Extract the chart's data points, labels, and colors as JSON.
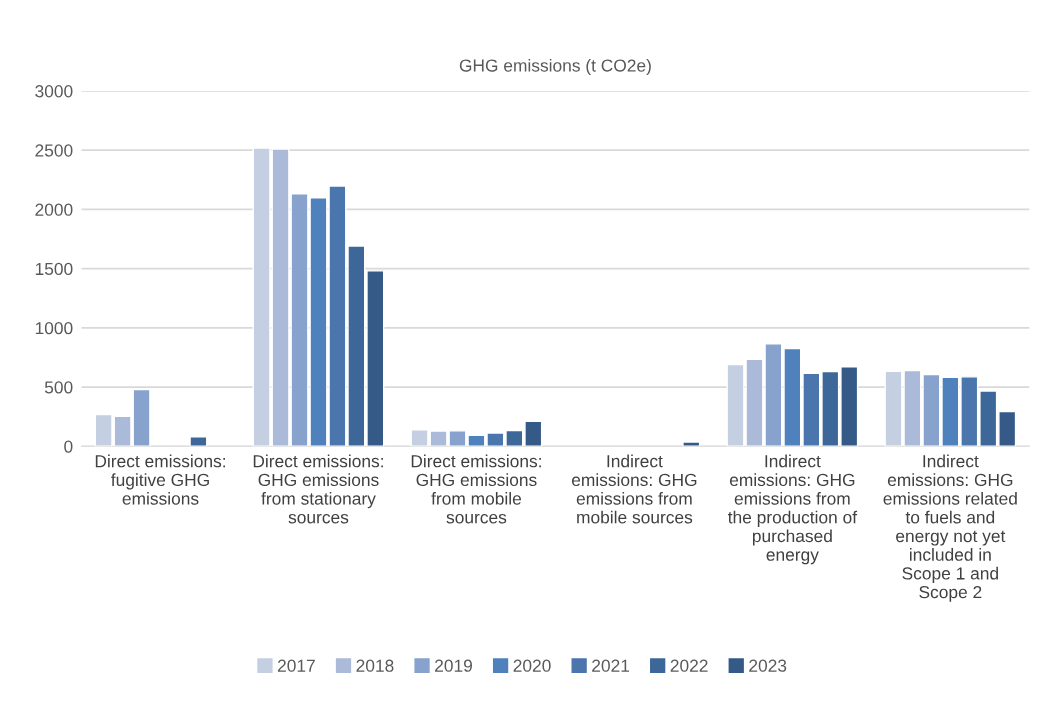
{
  "chart_data": {
    "type": "bar",
    "title": "GHG emissions (t CO2e)",
    "categories": [
      "Direct emissions:\nfugitive GHG\nemissions",
      "Direct emissions:\nGHG emissions\nfrom stationary\nsources",
      "Direct emissions:\nGHG emissions\nfrom mobile\nsources",
      "Indirect\nemissions: GHG\nemissions from\nmobile sources",
      "Indirect\nemissions: GHG\nemissions from\nthe production of\npurchased\nenergy",
      "Indirect\nemissions: GHG\nemissions related\nto fuels and\nenergy not yet\nincluded in\nScope 1 and\nScope 2"
    ],
    "series": [
      {
        "name": "2017",
        "color": "#c5cfe2",
        "values": [
          268,
          2518,
          140,
          null,
          690,
          633
        ]
      },
      {
        "name": "2018",
        "color": "#abbad8",
        "values": [
          254,
          2510,
          129,
          null,
          734,
          640
        ]
      },
      {
        "name": "2019",
        "color": "#87a3cd",
        "values": [
          479,
          2132,
          130,
          null,
          866,
          606
        ]
      },
      {
        "name": "2020",
        "color": "#4f81bd",
        "values": [
          null,
          2098,
          92,
          null,
          826,
          582
        ]
      },
      {
        "name": "2021",
        "color": "#4a76ad",
        "values": [
          null,
          2197,
          112,
          null,
          616,
          586
        ]
      },
      {
        "name": "2022",
        "color": "#3e6799",
        "values": [
          79,
          1690,
          133,
          null,
          630,
          467
        ]
      },
      {
        "name": "2023",
        "color": "#355a87",
        "values": [
          null,
          1481,
          210,
          35,
          670,
          292
        ]
      }
    ],
    "ylim": [
      0,
      3000
    ],
    "yticks": [
      0,
      500,
      1000,
      1500,
      2000,
      2500,
      3000
    ],
    "grid": "y",
    "legend": "bottom"
  }
}
